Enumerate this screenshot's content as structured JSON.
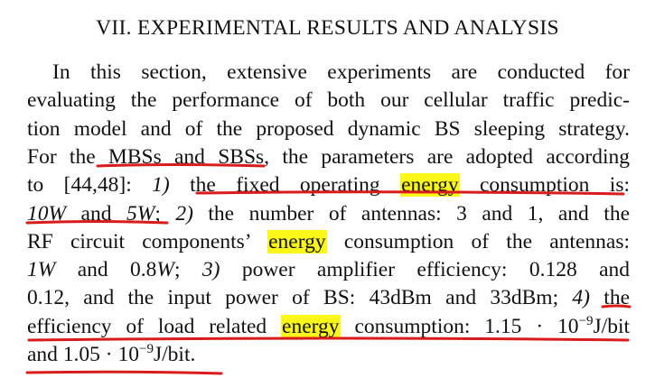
{
  "section_heading": "VII. EXPERIMENTAL RESULTS AND ANALYSIS",
  "colors": {
    "highlight": "#fbf719",
    "underline": "#d81b1b",
    "text": "#111111"
  },
  "lines": [
    {
      "segments": [
        {
          "t": "In this section, extensive experiments are conducted for"
        }
      ],
      "indent": true
    },
    {
      "segments": [
        {
          "t": "evaluating the performance of both our cellular traffic predic-"
        }
      ]
    },
    {
      "segments": [
        {
          "t": "tion model and of the proposed dynamic BS sleeping strategy."
        }
      ]
    },
    {
      "segments": [
        {
          "t": "For the MBSs and SBSs, the parameters are adopted according"
        }
      ]
    },
    {
      "segments": [
        {
          "t": "to [44,48]: "
        },
        {
          "t": "1)",
          "math": true
        },
        {
          "t": " the fixed operating "
        },
        {
          "t": "energy",
          "hl": true
        },
        {
          "t": " consumption is:"
        }
      ]
    },
    {
      "segments": [
        {
          "t": "10W",
          "math": true
        },
        {
          "t": " and "
        },
        {
          "t": "5W",
          "math": true
        },
        {
          "t": "; "
        },
        {
          "t": "2)",
          "math": true
        },
        {
          "t": " the number of antennas: 3 and 1, and the"
        }
      ]
    },
    {
      "segments": [
        {
          "t": "RF circuit components’ "
        },
        {
          "t": "energy",
          "hl": true
        },
        {
          "t": " consumption of the antennas:"
        }
      ]
    },
    {
      "segments": [
        {
          "t": "1W",
          "math": true
        },
        {
          "t": " and 0.8"
        },
        {
          "t": "W",
          "math": true
        },
        {
          "t": "; "
        },
        {
          "t": "3)",
          "math": true
        },
        {
          "t": " power amplifier efficiency: 0.128 and"
        }
      ]
    },
    {
      "segments": [
        {
          "t": "0.12, and the input power of BS: 43dBm and 33dBm; "
        },
        {
          "t": "4)",
          "math": true
        },
        {
          "t": " the"
        }
      ]
    },
    {
      "segments": [
        {
          "t": "efficiency of load related "
        },
        {
          "t": "energy",
          "hl": true
        },
        {
          "t": " consumption: 1.15 · 10"
        },
        {
          "t": "−9",
          "sup": true
        },
        {
          "t": "J/bit"
        }
      ]
    },
    {
      "segments": [
        {
          "t": "and 1.05 · 10"
        },
        {
          "t": "−9",
          "sup": true
        },
        {
          "t": "J/bit."
        }
      ],
      "last": true
    }
  ]
}
